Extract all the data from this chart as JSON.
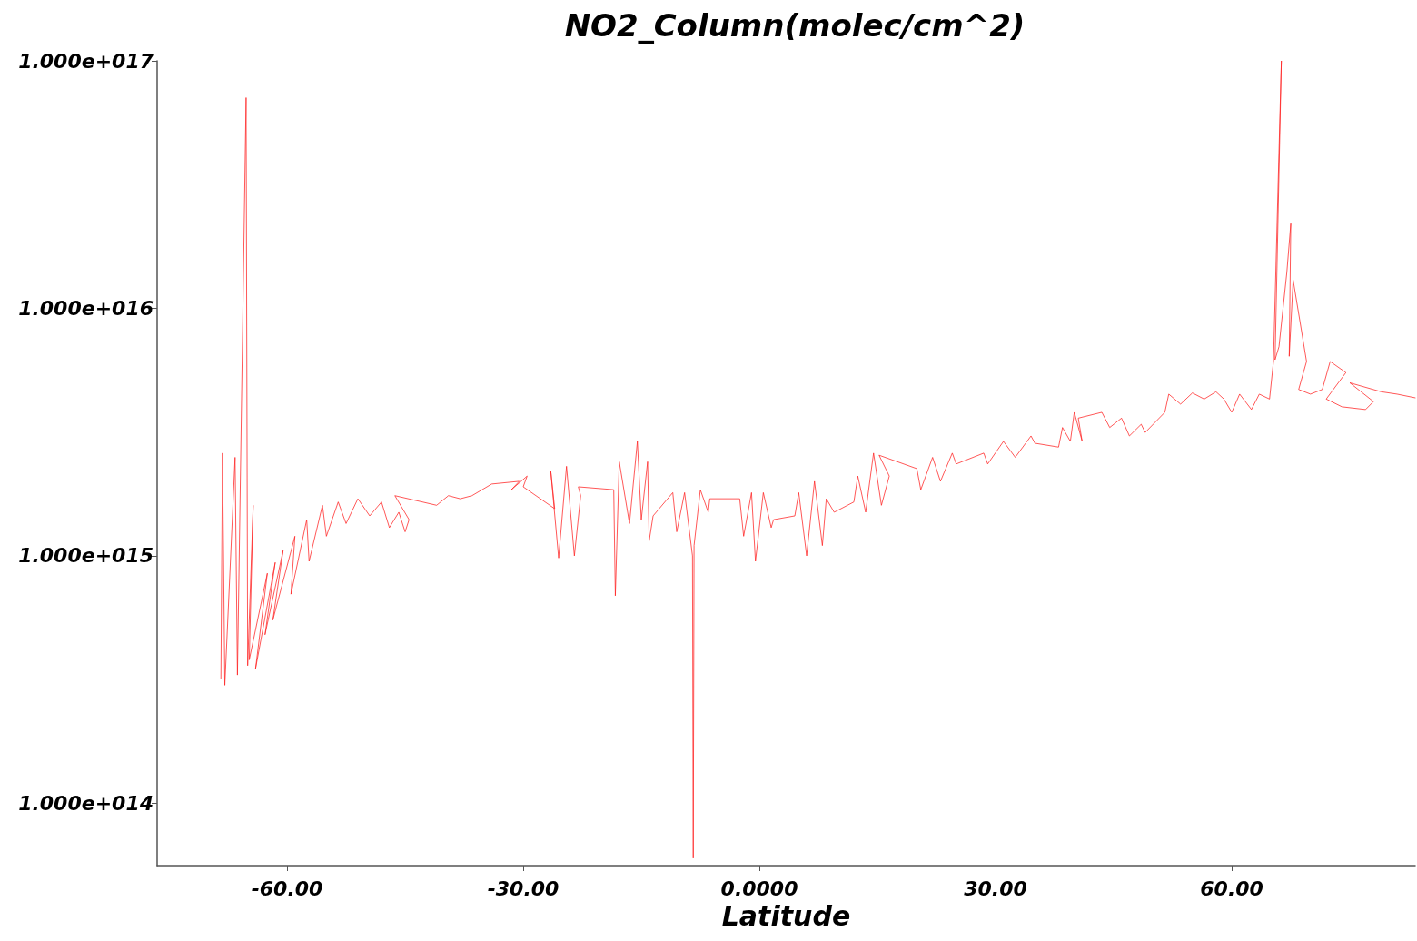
{
  "chart_data": {
    "type": "line",
    "title": "NO2_Column(molec/cm^2)",
    "xlabel": "Latitude",
    "log": "y",
    "marker": "none",
    "line_style": "solid",
    "xlim": [
      -76.5,
      83.3
    ],
    "xticks": [
      {
        "value": -60,
        "label": "-60.00"
      },
      {
        "value": -30,
        "label": "-30.00"
      },
      {
        "value": 0,
        "label": "0.0000"
      },
      {
        "value": 30,
        "label": "30.00"
      },
      {
        "value": 60,
        "label": "60.00"
      }
    ],
    "ylim": [
      56000000000000.0,
      1e+17
    ],
    "yticks": [
      {
        "value": 100000000000000.0,
        "label": "1.000e+014"
      },
      {
        "value": 1000000000000000.0,
        "label": "1.000e+015"
      },
      {
        "value": 1e+16,
        "label": "1.000e+016"
      },
      {
        "value": 1e+17,
        "label": "1.000e+017"
      }
    ],
    "series": [
      {
        "color": "#ff2020",
        "x": [
          -68.4,
          -68.2,
          -67.9,
          -66.6,
          -66.3,
          -65.2,
          -65.0,
          -64.3,
          -64.8,
          -62.5,
          -64.0,
          -61.5,
          -62.8,
          -60.5,
          -61.8,
          -59.0,
          -59.5,
          -57.5,
          -57.2,
          -55.5,
          -55.0,
          -53.5,
          -52.5,
          -51.0,
          -49.5,
          -48.0,
          -47.0,
          -45.8,
          -45.0,
          -44.5,
          -46.3,
          -41.0,
          -39.5,
          -38.0,
          -36.5,
          -34.0,
          -30.5,
          -31.5,
          -29.5,
          -30.0,
          -26.0,
          -26.5,
          -25.5,
          -24.5,
          -23.5,
          -22.7,
          -23.0,
          -18.5,
          -18.3,
          -17.8,
          -16.5,
          -15.5,
          -15.0,
          -14.2,
          -14.0,
          -13.5,
          -11.0,
          -10.5,
          -9.5,
          -8.5,
          -8.4,
          -8.3,
          -7.5,
          -6.5,
          -6.3,
          -2.5,
          -2.0,
          -1.0,
          -0.5,
          0.5,
          1.5,
          1.8,
          4.5,
          5.0,
          6.0,
          7.0,
          8.0,
          8.5,
          9.5,
          12.0,
          12.5,
          13.5,
          14.5,
          15.5,
          16.5,
          15.2,
          20.0,
          20.5,
          22.0,
          23.0,
          24.5,
          25.0,
          28.5,
          29.0,
          31.0,
          32.5,
          34.5,
          35.0,
          38.0,
          38.5,
          39.5,
          40.0,
          41.0,
          40.5,
          43.5,
          44.5,
          46.0,
          47.0,
          48.5,
          49.0,
          51.5,
          52.0,
          53.5,
          55.0,
          56.5,
          58.0,
          59.0,
          60.0,
          61.0,
          62.5,
          63.5,
          64.8,
          65.3,
          66.3,
          65.5,
          66.0,
          67.0,
          67.5,
          67.3,
          67.8,
          69.5,
          68.5,
          70.0,
          71.5,
          72.5,
          74.5,
          72.0,
          74.0,
          77.0,
          78.0,
          75.0,
          79.0,
          81.0,
          83.3
        ],
        "values": [
          320000000000000.0,
          2600000000000000.0,
          300000000000000.0,
          2500000000000000.0,
          330000000000000.0,
          7.1e+16,
          360000000000000.0,
          1600000000000000.0,
          380000000000000.0,
          850000000000000.0,
          350000000000000.0,
          940000000000000.0,
          480000000000000.0,
          1050000000000000.0,
          550000000000000.0,
          1200000000000000.0,
          700000000000000.0,
          1400000000000000.0,
          950000000000000.0,
          1600000000000000.0,
          1200000000000000.0,
          1650000000000000.0,
          1350000000000000.0,
          1700000000000000.0,
          1450000000000000.0,
          1650000000000000.0,
          1300000000000000.0,
          1500000000000000.0,
          1250000000000000.0,
          1400000000000000.0,
          1750000000000000.0,
          1600000000000000.0,
          1750000000000000.0,
          1700000000000000.0,
          1750000000000000.0,
          1950000000000000.0,
          2000000000000000.0,
          1850000000000000.0,
          2100000000000000.0,
          1900000000000000.0,
          1550000000000000.0,
          2200000000000000.0,
          980000000000000.0,
          2300000000000000.0,
          1000000000000000.0,
          1750000000000000.0,
          1900000000000000.0,
          1850000000000000.0,
          690000000000000.0,
          2400000000000000.0,
          1350000000000000.0,
          2900000000000000.0,
          1400000000000000.0,
          2400000000000000.0,
          1150000000000000.0,
          1450000000000000.0,
          1800000000000000.0,
          1250000000000000.0,
          1800000000000000.0,
          1000000000000000.0,
          60000000000000.0,
          1100000000000000.0,
          1850000000000000.0,
          1500000000000000.0,
          1700000000000000.0,
          1700000000000000.0,
          1200000000000000.0,
          1800000000000000.0,
          950000000000000.0,
          1800000000000000.0,
          1300000000000000.0,
          1400000000000000.0,
          1450000000000000.0,
          1800000000000000.0,
          1000000000000000.0,
          2000000000000000.0,
          1100000000000000.0,
          1700000000000000.0,
          1500000000000000.0,
          1650000000000000.0,
          2100000000000000.0,
          1500000000000000.0,
          2600000000000000.0,
          1600000000000000.0,
          2100000000000000.0,
          2550000000000000.0,
          2250000000000000.0,
          1850000000000000.0,
          2500000000000000.0,
          2000000000000000.0,
          2600000000000000.0,
          2350000000000000.0,
          2600000000000000.0,
          2350000000000000.0,
          2900000000000000.0,
          2500000000000000.0,
          3050000000000000.0,
          2850000000000000.0,
          2750000000000000.0,
          3300000000000000.0,
          2900000000000000.0,
          3800000000000000.0,
          2900000000000000.0,
          3600000000000000.0,
          3800000000000000.0,
          3300000000000000.0,
          3600000000000000.0,
          3050000000000000.0,
          3400000000000000.0,
          3150000000000000.0,
          3800000000000000.0,
          4500000000000000.0,
          4100000000000000.0,
          4550000000000000.0,
          4300000000000000.0,
          4600000000000000.0,
          4300000000000000.0,
          3800000000000000.0,
          4500000000000000.0,
          3900000000000000.0,
          4500000000000000.0,
          4300000000000000.0,
          6100000000000000.0,
          1e+17,
          6200000000000000.0,
          7000000000000000.0,
          1.4e+16,
          2.2e+16,
          6400000000000000.0,
          1.3e+16,
          6100000000000000.0,
          4700000000000000.0,
          4500000000000000.0,
          4700000000000000.0,
          6100000000000000.0,
          5500000000000000.0,
          4300000000000000.0,
          4000000000000000.0,
          3900000000000000.0,
          4200000000000000.0,
          5000000000000000.0,
          4600000000000000.0,
          4500000000000000.0,
          4350000000000000.0
        ]
      }
    ]
  }
}
